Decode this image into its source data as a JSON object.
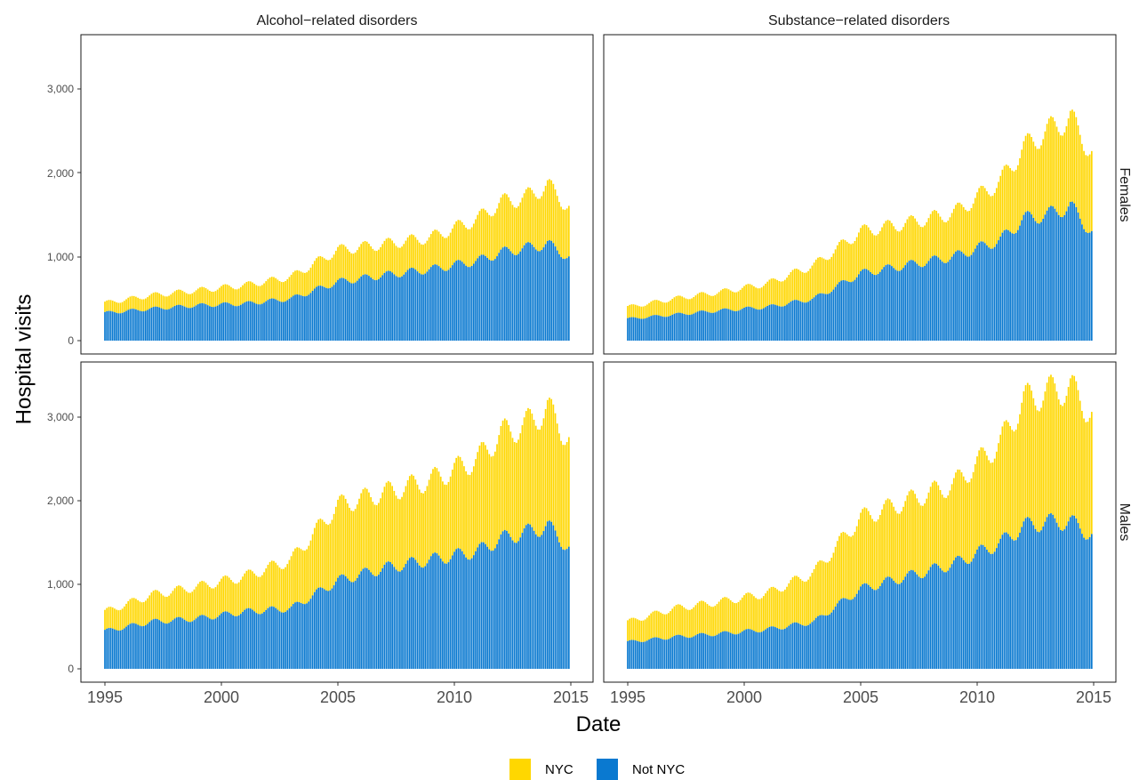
{
  "chart_data": {
    "type": "bar",
    "stacked": true,
    "xlabel": "Date",
    "ylabel": "Hospital visits",
    "x_range": [
      1995,
      2015
    ],
    "x_ticks": [
      1995,
      2000,
      2005,
      2010,
      2015
    ],
    "ylim": [
      0,
      3500
    ],
    "y_ticks": [
      0,
      1000,
      2000,
      3000
    ],
    "y_tick_labels": [
      "0",
      "1,000",
      "2,000",
      "3,000"
    ],
    "grid": false,
    "legend_position": "bottom",
    "colors": {
      "NYC": "#FFD700",
      "Not NYC": "#0A79D0"
    },
    "columns": [
      "Alcohol−related disorders",
      "Substance−related disorders"
    ],
    "rows": [
      "Females",
      "Males"
    ],
    "series_names": [
      "NYC",
      "Not NYC"
    ],
    "panels": [
      {
        "column": "Alcohol−related disorders",
        "row": "Females",
        "x_years": [
          1995,
          1997,
          1999,
          2001,
          2003,
          2005,
          2007,
          2009,
          2011,
          2012,
          2013,
          2014,
          2014.9
        ],
        "not_nyc": [
          330,
          380,
          420,
          440,
          500,
          700,
          780,
          850,
          950,
          1050,
          1100,
          1150,
          1000
        ],
        "total": [
          450,
          540,
          600,
          660,
          760,
          1080,
          1150,
          1230,
          1450,
          1650,
          1700,
          1850,
          1600
        ]
      },
      {
        "column": "Substance−related disorders",
        "row": "Females",
        "x_years": [
          1995,
          1997,
          1999,
          2001,
          2003,
          2005,
          2007,
          2009,
          2011,
          2012,
          2013,
          2014,
          2014.9
        ],
        "not_nyc": [
          260,
          310,
          360,
          400,
          500,
          800,
          900,
          1000,
          1200,
          1450,
          1500,
          1600,
          1300
        ],
        "total": [
          400,
          500,
          580,
          680,
          900,
          1300,
          1400,
          1520,
          1900,
          2300,
          2500,
          2650,
          2250
        ]
      },
      {
        "column": "Alcohol−related disorders",
        "row": "Males",
        "x_years": [
          1995,
          1997,
          1999,
          2001,
          2003,
          2005,
          2007,
          2009,
          2011,
          2012,
          2013,
          2014,
          2014.9
        ],
        "not_nyc": [
          450,
          560,
          600,
          680,
          720,
          1050,
          1200,
          1300,
          1400,
          1550,
          1620,
          1700,
          1450
        ],
        "total": [
          680,
          880,
          980,
          1100,
          1300,
          1950,
          2100,
          2250,
          2500,
          2800,
          2900,
          3100,
          2750
        ]
      },
      {
        "column": "Substance−related disorders",
        "row": "Males",
        "x_years": [
          1995,
          1997,
          1999,
          2001,
          2003,
          2005,
          2007,
          2009,
          2011,
          2012,
          2013,
          2014,
          2014.9
        ],
        "not_nyc": [
          320,
          380,
          420,
          470,
          560,
          950,
          1100,
          1250,
          1500,
          1700,
          1750,
          1750,
          1600
        ],
        "total": [
          560,
          720,
          800,
          900,
          1150,
          1800,
          2000,
          2200,
          2700,
          3200,
          3300,
          3350,
          3050
        ]
      }
    ]
  }
}
